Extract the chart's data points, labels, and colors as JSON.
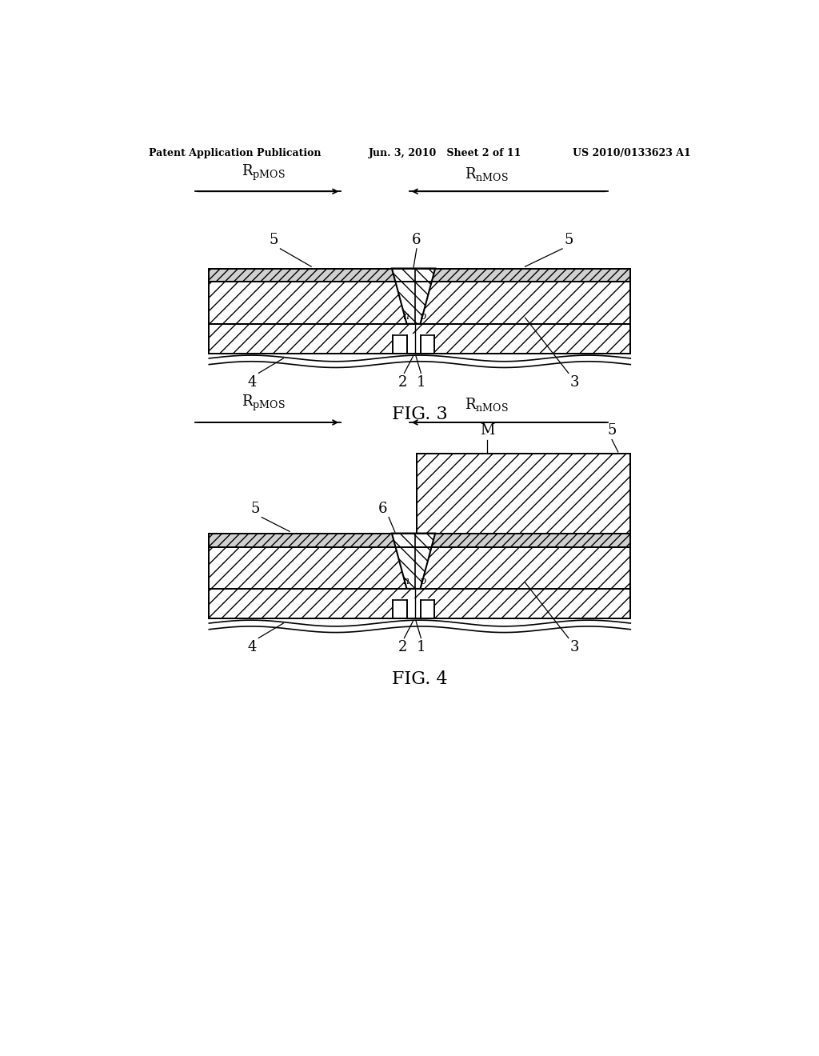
{
  "header_left": "Patent Application Publication",
  "header_mid": "Jun. 3, 2010   Sheet 2 of 11",
  "header_right": "US 2010/0133623 A1",
  "fig3_label": "FIG. 3",
  "fig4_label": "FIG. 4",
  "bg_color": "#ffffff"
}
